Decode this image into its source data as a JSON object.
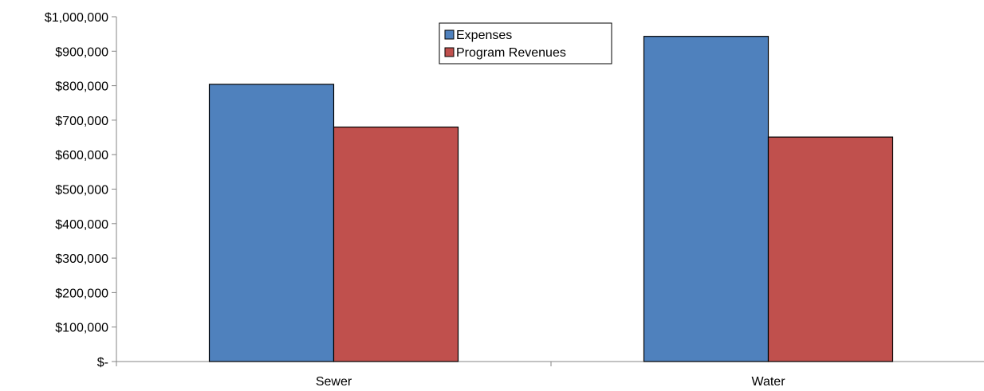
{
  "chart_data": {
    "type": "bar",
    "categories": [
      "Sewer",
      "Water"
    ],
    "series": [
      {
        "name": "Expenses",
        "color": "#4F81BD",
        "values": [
          804000,
          943000
        ]
      },
      {
        "name": "Program Revenues",
        "color": "#C0504D",
        "values": [
          680000,
          651000
        ]
      }
    ],
    "ylim": [
      0,
      1000000
    ],
    "yticks": [
      0,
      100000,
      200000,
      300000,
      400000,
      500000,
      600000,
      700000,
      800000,
      900000,
      1000000
    ],
    "ytick_labels": [
      "$-",
      "$100,000",
      "$200,000",
      "$300,000",
      "$400,000",
      "$500,000",
      "$600,000",
      "$700,000",
      "$800,000",
      "$900,000",
      "$1,000,000"
    ],
    "xlabel": "",
    "ylabel": "",
    "title": "",
    "legend_position": "top-center",
    "grid": false
  }
}
